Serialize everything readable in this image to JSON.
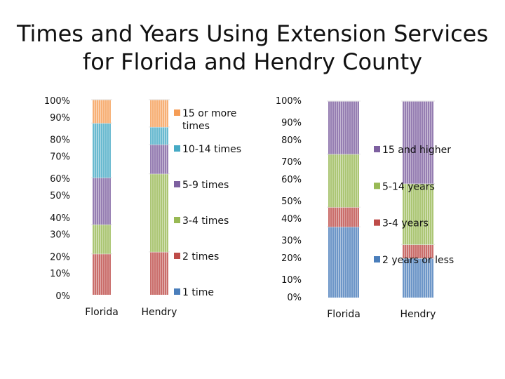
{
  "title": {
    "line1": "Times and Years Using Extension Services",
    "line2": "for Florida and Hendry County"
  },
  "chart_data": [
    {
      "type": "bar",
      "stacked": "percent",
      "categories": [
        "Florida",
        "Hendry"
      ],
      "yticks": [
        "0%",
        "10%",
        "20%",
        "30%",
        "40%",
        "50%",
        "60%",
        "70%",
        "80%",
        "90%",
        "100%"
      ],
      "ylim": [
        0,
        100
      ],
      "legend_position": "right",
      "series": [
        {
          "name": "1 time",
          "color": "#4a7ebb",
          "values": [
            0,
            0
          ]
        },
        {
          "name": "2 times",
          "color": "#be4b48",
          "values": [
            21,
            22
          ]
        },
        {
          "name": "3-4 times",
          "color": "#98b954",
          "values": [
            15,
            40
          ]
        },
        {
          "name": "5-9 times",
          "color": "#7d60a0",
          "values": [
            24,
            15
          ]
        },
        {
          "name": "10-14 times",
          "color": "#46aac5",
          "values": [
            28,
            9
          ]
        },
        {
          "name": "15 or more times",
          "color": "#f59d56",
          "values": [
            12,
            14
          ]
        }
      ]
    },
    {
      "type": "bar",
      "stacked": "percent",
      "categories": [
        "Florida",
        "Hendry"
      ],
      "yticks": [
        "0%",
        "10%",
        "20%",
        "30%",
        "40%",
        "50%",
        "60%",
        "70%",
        "80%",
        "90%",
        "100%"
      ],
      "ylim": [
        0,
        100
      ],
      "legend_position": "right",
      "series": [
        {
          "name": "2 years or less",
          "color": "#4a7ebb",
          "values": [
            36,
            20
          ]
        },
        {
          "name": "3-4 years",
          "color": "#be4b48",
          "values": [
            10,
            7
          ]
        },
        {
          "name": "5-14 years",
          "color": "#98b954",
          "values": [
            27,
            31
          ]
        },
        {
          "name": "15 and higher",
          "color": "#7d60a0",
          "values": [
            27,
            42
          ]
        }
      ]
    }
  ]
}
